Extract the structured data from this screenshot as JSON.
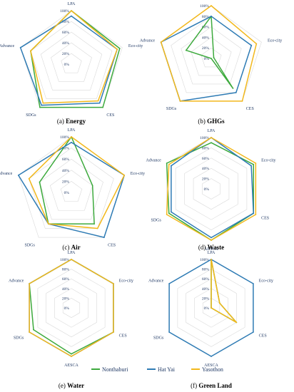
{
  "legend": [
    {
      "name": "Nonthaburi",
      "color": "#3daa3d"
    },
    {
      "name": "Hat Yai",
      "color": "#2e7bb4"
    },
    {
      "name": "Yasothon",
      "color": "#f2b81c"
    }
  ],
  "chart_data": [
    {
      "type": "radar",
      "caption_prefix": "(a)",
      "caption_title": "Energy",
      "axes": [
        "LPA",
        "Eco-city",
        "CES",
        "SDGs",
        "Advance"
      ],
      "ticks": [
        "0%",
        "20%",
        "40%",
        "60%",
        "80%",
        "100%"
      ],
      "rlim": [
        0,
        100
      ],
      "series": [
        {
          "name": "Nonthaburi",
          "values": [
            100,
            95,
            100,
            100,
            80
          ]
        },
        {
          "name": "Hat Yai",
          "values": [
            90,
            90,
            90,
            95,
            100
          ]
        },
        {
          "name": "Yasothon",
          "values": [
            100,
            90,
            85,
            90,
            80
          ]
        }
      ]
    },
    {
      "type": "radar",
      "caption_prefix": "(b)",
      "caption_title": "GHGs",
      "axes": [
        "LPA",
        "Eco-city",
        "CES",
        "SDGs",
        "Advance"
      ],
      "ticks": [
        "0%",
        "20%",
        "40%",
        "60%",
        "80%",
        "100%"
      ],
      "rlim": [
        0,
        100
      ],
      "series": [
        {
          "name": "Nonthaburi",
          "values": [
            80,
            5,
            70,
            0,
            50
          ]
        },
        {
          "name": "Hat Yai",
          "values": [
            80,
            80,
            80,
            100,
            100
          ]
        },
        {
          "name": "Yasothon",
          "values": [
            100,
            90,
            100,
            100,
            100
          ]
        }
      ]
    },
    {
      "type": "radar",
      "caption_prefix": "(c)",
      "caption_title": "Air",
      "axes": [
        "LPA",
        "Eco-city",
        "CES",
        "SDGs",
        "Advance"
      ],
      "ticks": [
        "0%",
        "20%",
        "40%",
        "60%",
        "80%",
        "100%"
      ],
      "rlim": [
        0,
        100
      ],
      "series": [
        {
          "name": "Nonthaburi",
          "values": [
            100,
            40,
            70,
            70,
            60
          ]
        },
        {
          "name": "Hat Yai",
          "values": [
            90,
            100,
            100,
            70,
            100
          ]
        },
        {
          "name": "Yasothon",
          "values": [
            100,
            100,
            80,
            70,
            80
          ]
        }
      ]
    },
    {
      "type": "radar",
      "caption_prefix": "(d)",
      "caption_title": "Waste",
      "axes": [
        "LPA",
        "Eco-city",
        "CES",
        "AESCA",
        "SDGs",
        "Advance"
      ],
      "ticks": [
        "0%",
        "20%",
        "40%",
        "60%",
        "80%",
        "100%"
      ],
      "rlim": [
        0,
        100
      ],
      "series": [
        {
          "name": "Nonthaburi",
          "values": [
            90,
            95,
            95,
            100,
            95,
            100
          ]
        },
        {
          "name": "Hat Yai",
          "values": [
            100,
            90,
            95,
            95,
            90,
            90
          ]
        },
        {
          "name": "Yasothon",
          "values": [
            100,
            100,
            100,
            100,
            100,
            95
          ]
        }
      ]
    },
    {
      "type": "radar",
      "caption_prefix": "(e)",
      "caption_title": "Water",
      "axes": [
        "LPA",
        "Eco-city",
        "CES",
        "AESCA",
        "SDGs",
        "Advance"
      ],
      "ticks": [
        "0%",
        "20%",
        "40%",
        "60%",
        "80%",
        "100%"
      ],
      "rlim": [
        0,
        100
      ],
      "series": [
        {
          "name": "Nonthaburi",
          "values": [
            100,
            100,
            100,
            95,
            90,
            100
          ]
        },
        {
          "name": "Hat Yai",
          "values": [
            100,
            100,
            100,
            100,
            100,
            100
          ]
        },
        {
          "name": "Yasothon",
          "values": [
            100,
            100,
            100,
            100,
            100,
            100
          ]
        }
      ]
    },
    {
      "type": "radar",
      "caption_prefix": "(f)",
      "caption_title": "Green Land",
      "axes": [
        "LPA",
        "Eco-city",
        "CES",
        "AESCA",
        "SDGs",
        "Advance"
      ],
      "ticks": [
        "0%",
        "20%",
        "40%",
        "60%",
        "80%",
        "100%"
      ],
      "rlim": [
        0,
        100
      ],
      "series": [
        {
          "name": "Nonthaburi",
          "values": [
            100,
            20,
            60,
            0,
            0,
            0
          ]
        },
        {
          "name": "Hat Yai",
          "values": [
            100,
            100,
            100,
            100,
            100,
            100
          ]
        },
        {
          "name": "Yasothon",
          "values": [
            100,
            20,
            60,
            0,
            0,
            0
          ]
        }
      ]
    }
  ]
}
